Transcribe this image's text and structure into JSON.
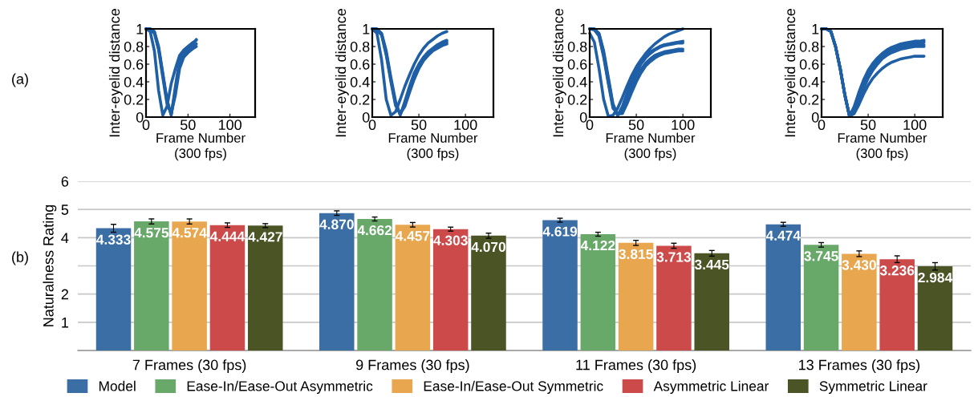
{
  "chart_data": [
    {
      "type": "line",
      "ylabel": "Inter-eyelid distance",
      "xlabel": "Frame Number\n(300 fps)",
      "xlim": [
        0,
        130
      ],
      "xticks": [
        0,
        50,
        100
      ],
      "ylim": [
        0,
        1
      ],
      "yticks": [
        0,
        0.2,
        0.4,
        0.6,
        0.8,
        1
      ],
      "grid": false,
      "annotations": [
        "(a)"
      ],
      "x": [
        0,
        5,
        10,
        15,
        20,
        25,
        30,
        35,
        40,
        45,
        50,
        55,
        60
      ],
      "series": [
        {
          "color": "#1f5fa6",
          "values": [
            1,
            0.97,
            0.75,
            0.3,
            0.02,
            0.12,
            0.38,
            0.55,
            0.7,
            0.76,
            0.8,
            0.84,
            0.87
          ]
        },
        {
          "color": "#1f5fa6",
          "values": [
            1,
            1,
            0.97,
            0.8,
            0.5,
            0.2,
            0.02,
            0.35,
            0.65,
            0.73,
            0.78,
            0.82,
            0.88
          ]
        },
        {
          "color": "#1f5fa6",
          "values": [
            1,
            1,
            0.96,
            0.78,
            0.48,
            0.18,
            0.03,
            0.3,
            0.6,
            0.7,
            0.75,
            0.79,
            0.83
          ]
        },
        {
          "color": "#1f5fa6",
          "values": [
            1,
            0.99,
            0.95,
            0.76,
            0.45,
            0.15,
            0.04,
            0.25,
            0.55,
            0.68,
            0.73,
            0.77,
            0.8
          ]
        }
      ]
    },
    {
      "type": "line",
      "ylabel": "Inter-eyelid distance",
      "xlabel": "Frame Number\n(300 fps)",
      "xlim": [
        0,
        130
      ],
      "xticks": [
        0,
        50,
        100
      ],
      "ylim": [
        0,
        1
      ],
      "yticks": [
        0,
        0.2,
        0.4,
        0.6,
        0.8,
        1
      ],
      "grid": false,
      "x": [
        0,
        5,
        10,
        15,
        20,
        25,
        30,
        35,
        40,
        45,
        50,
        55,
        60,
        65,
        70,
        75,
        80
      ],
      "series": [
        {
          "color": "#1f5fa6",
          "values": [
            1,
            0.95,
            0.65,
            0.2,
            0.02,
            0.06,
            0.2,
            0.35,
            0.48,
            0.6,
            0.7,
            0.78,
            0.84,
            0.88,
            0.92,
            0.95,
            0.97
          ]
        },
        {
          "color": "#1f5fa6",
          "values": [
            1,
            1,
            0.95,
            0.75,
            0.45,
            0.18,
            0.02,
            0.18,
            0.35,
            0.5,
            0.6,
            0.68,
            0.74,
            0.78,
            0.82,
            0.85,
            0.87
          ]
        },
        {
          "color": "#1f5fa6",
          "values": [
            1,
            1,
            0.94,
            0.72,
            0.42,
            0.15,
            0.03,
            0.15,
            0.32,
            0.47,
            0.58,
            0.66,
            0.72,
            0.76,
            0.8,
            0.83,
            0.85
          ]
        },
        {
          "color": "#1f5fa6",
          "values": [
            1,
            0.99,
            0.93,
            0.7,
            0.4,
            0.13,
            0.04,
            0.12,
            0.28,
            0.43,
            0.55,
            0.64,
            0.7,
            0.75,
            0.78,
            0.81,
            0.83
          ]
        }
      ]
    },
    {
      "type": "line",
      "ylabel": "Inter-eyelid distance",
      "xlabel": "Frame Number\n(300 fps)",
      "xlim": [
        0,
        130
      ],
      "xticks": [
        0,
        50,
        100
      ],
      "ylim": [
        0,
        1
      ],
      "yticks": [
        0,
        0.2,
        0.4,
        0.6,
        0.8,
        1
      ],
      "grid": false,
      "x": [
        0,
        5,
        10,
        15,
        20,
        25,
        30,
        35,
        40,
        45,
        50,
        55,
        60,
        65,
        70,
        75,
        80,
        85,
        90,
        95,
        100
      ],
      "series": [
        {
          "color": "#1f5fa6",
          "values": [
            0.95,
            0.85,
            0.55,
            0.2,
            0.01,
            0.02,
            0.1,
            0.22,
            0.35,
            0.47,
            0.57,
            0.65,
            0.72,
            0.78,
            0.83,
            0.87,
            0.91,
            0.94,
            0.96,
            0.98,
            1.0
          ]
        },
        {
          "color": "#1f5fa6",
          "values": [
            1,
            1,
            0.95,
            0.75,
            0.45,
            0.15,
            0.02,
            0.12,
            0.27,
            0.42,
            0.54,
            0.63,
            0.7,
            0.74,
            0.77,
            0.8,
            0.82,
            0.83,
            0.84,
            0.85,
            0.86
          ]
        },
        {
          "color": "#1f5fa6",
          "values": [
            1,
            1,
            0.94,
            0.72,
            0.42,
            0.13,
            0.02,
            0.08,
            0.22,
            0.37,
            0.5,
            0.6,
            0.67,
            0.72,
            0.76,
            0.79,
            0.81,
            0.82,
            0.83,
            0.84,
            0.84
          ]
        },
        {
          "color": "#1f5fa6",
          "values": [
            1,
            0.99,
            0.93,
            0.7,
            0.4,
            0.12,
            0.03,
            0.06,
            0.18,
            0.32,
            0.44,
            0.54,
            0.61,
            0.66,
            0.7,
            0.72,
            0.74,
            0.75,
            0.76,
            0.77,
            0.77
          ]
        },
        {
          "color": "#1f5fa6",
          "values": [
            1,
            0.99,
            0.92,
            0.68,
            0.38,
            0.1,
            0.04,
            0.04,
            0.15,
            0.28,
            0.4,
            0.5,
            0.58,
            0.63,
            0.67,
            0.7,
            0.72,
            0.73,
            0.74,
            0.75,
            0.75
          ]
        }
      ]
    },
    {
      "type": "line",
      "ylabel": "Inter-eyelid distance",
      "xlabel": "Frame Number\n(300 fps)",
      "xlim": [
        0,
        130
      ],
      "xticks": [
        0,
        50,
        100
      ],
      "ylim": [
        0,
        1
      ],
      "yticks": [
        0,
        0.2,
        0.4,
        0.6,
        0.8,
        1
      ],
      "grid": false,
      "x": [
        0,
        5,
        10,
        15,
        20,
        25,
        30,
        35,
        40,
        45,
        50,
        55,
        60,
        65,
        70,
        75,
        80,
        85,
        90,
        95,
        100,
        105,
        110
      ],
      "series": [
        {
          "color": "#1f5fa6",
          "values": [
            1,
            1,
            0.97,
            0.8,
            0.55,
            0.25,
            0.01,
            0.12,
            0.28,
            0.42,
            0.53,
            0.61,
            0.67,
            0.72,
            0.76,
            0.79,
            0.81,
            0.83,
            0.84,
            0.85,
            0.86,
            0.86,
            0.87
          ]
        },
        {
          "color": "#1f5fa6",
          "values": [
            1,
            1,
            0.97,
            0.8,
            0.55,
            0.25,
            0.01,
            0.1,
            0.25,
            0.39,
            0.5,
            0.59,
            0.65,
            0.7,
            0.74,
            0.77,
            0.79,
            0.81,
            0.82,
            0.83,
            0.84,
            0.85,
            0.85
          ]
        },
        {
          "color": "#1f5fa6",
          "values": [
            1,
            1,
            0.97,
            0.8,
            0.55,
            0.25,
            0.01,
            0.08,
            0.21,
            0.35,
            0.47,
            0.56,
            0.63,
            0.68,
            0.72,
            0.75,
            0.77,
            0.79,
            0.8,
            0.81,
            0.82,
            0.82,
            0.82
          ]
        },
        {
          "color": "#1f5fa6",
          "values": [
            1,
            1,
            0.97,
            0.8,
            0.55,
            0.25,
            0.01,
            0.06,
            0.18,
            0.32,
            0.44,
            0.53,
            0.6,
            0.66,
            0.7,
            0.73,
            0.75,
            0.77,
            0.78,
            0.79,
            0.8,
            0.8,
            0.8
          ]
        },
        {
          "color": "#1f5fa6",
          "values": [
            1,
            1,
            0.97,
            0.8,
            0.55,
            0.25,
            0.01,
            0.04,
            0.14,
            0.26,
            0.36,
            0.44,
            0.5,
            0.55,
            0.59,
            0.62,
            0.64,
            0.66,
            0.67,
            0.68,
            0.69,
            0.69,
            0.69
          ]
        }
      ]
    },
    {
      "type": "bar",
      "ylabel": "Naturalness Rating",
      "ylim": [
        0,
        6
      ],
      "yticks": [
        1,
        2,
        {
          "value": 3,
          "label": null
        },
        4,
        5,
        6
      ],
      "grid": "y",
      "legend": "bottom",
      "annotations": [
        "(b)"
      ],
      "categories": [
        "7 Frames (30 fps)",
        "9 Frames (30 fps)",
        "11 Frames (30 fps)",
        "13 Frames (30 fps)"
      ],
      "series": [
        {
          "name": "Model",
          "color": "#3a6ea5",
          "values": [
            4.333,
            4.87,
            4.619,
            4.474
          ],
          "value_labels": [
            "4.333",
            "4.870",
            "4.619",
            "4.474"
          ],
          "errors": [
            0.14,
            0.08,
            0.07,
            0.07
          ]
        },
        {
          "name": "Ease-In/Ease-Out Asymmetric",
          "color": "#68a96a",
          "values": [
            4.575,
            4.662,
            4.122,
            3.745
          ],
          "value_labels": [
            "4.575",
            "4.662",
            "4.122",
            "3.745"
          ],
          "errors": [
            0.09,
            0.07,
            0.07,
            0.08
          ]
        },
        {
          "name": "Ease-In/Ease-Out Symmetric",
          "color": "#e8a74f",
          "values": [
            4.574,
            4.457,
            3.815,
            3.43
          ],
          "value_labels": [
            "4.574",
            "4.457",
            "3.815",
            "3.430"
          ],
          "errors": [
            0.09,
            0.08,
            0.09,
            0.1
          ]
        },
        {
          "name": "Asymmetric Linear",
          "color": "#cc4a4a",
          "values": [
            4.444,
            4.303,
            3.713,
            3.236
          ],
          "value_labels": [
            "4.444",
            "4.303",
            "3.713",
            "3.236"
          ],
          "errors": [
            0.08,
            0.07,
            0.09,
            0.12
          ]
        },
        {
          "name": "Symmetric Linear",
          "color": "#4a5424",
          "values": [
            4.427,
            4.07,
            3.445,
            2.984
          ],
          "value_labels": [
            "4.427",
            "4.070",
            "3.445",
            "2.984"
          ],
          "errors": [
            0.07,
            0.09,
            0.1,
            0.13
          ]
        }
      ]
    }
  ]
}
